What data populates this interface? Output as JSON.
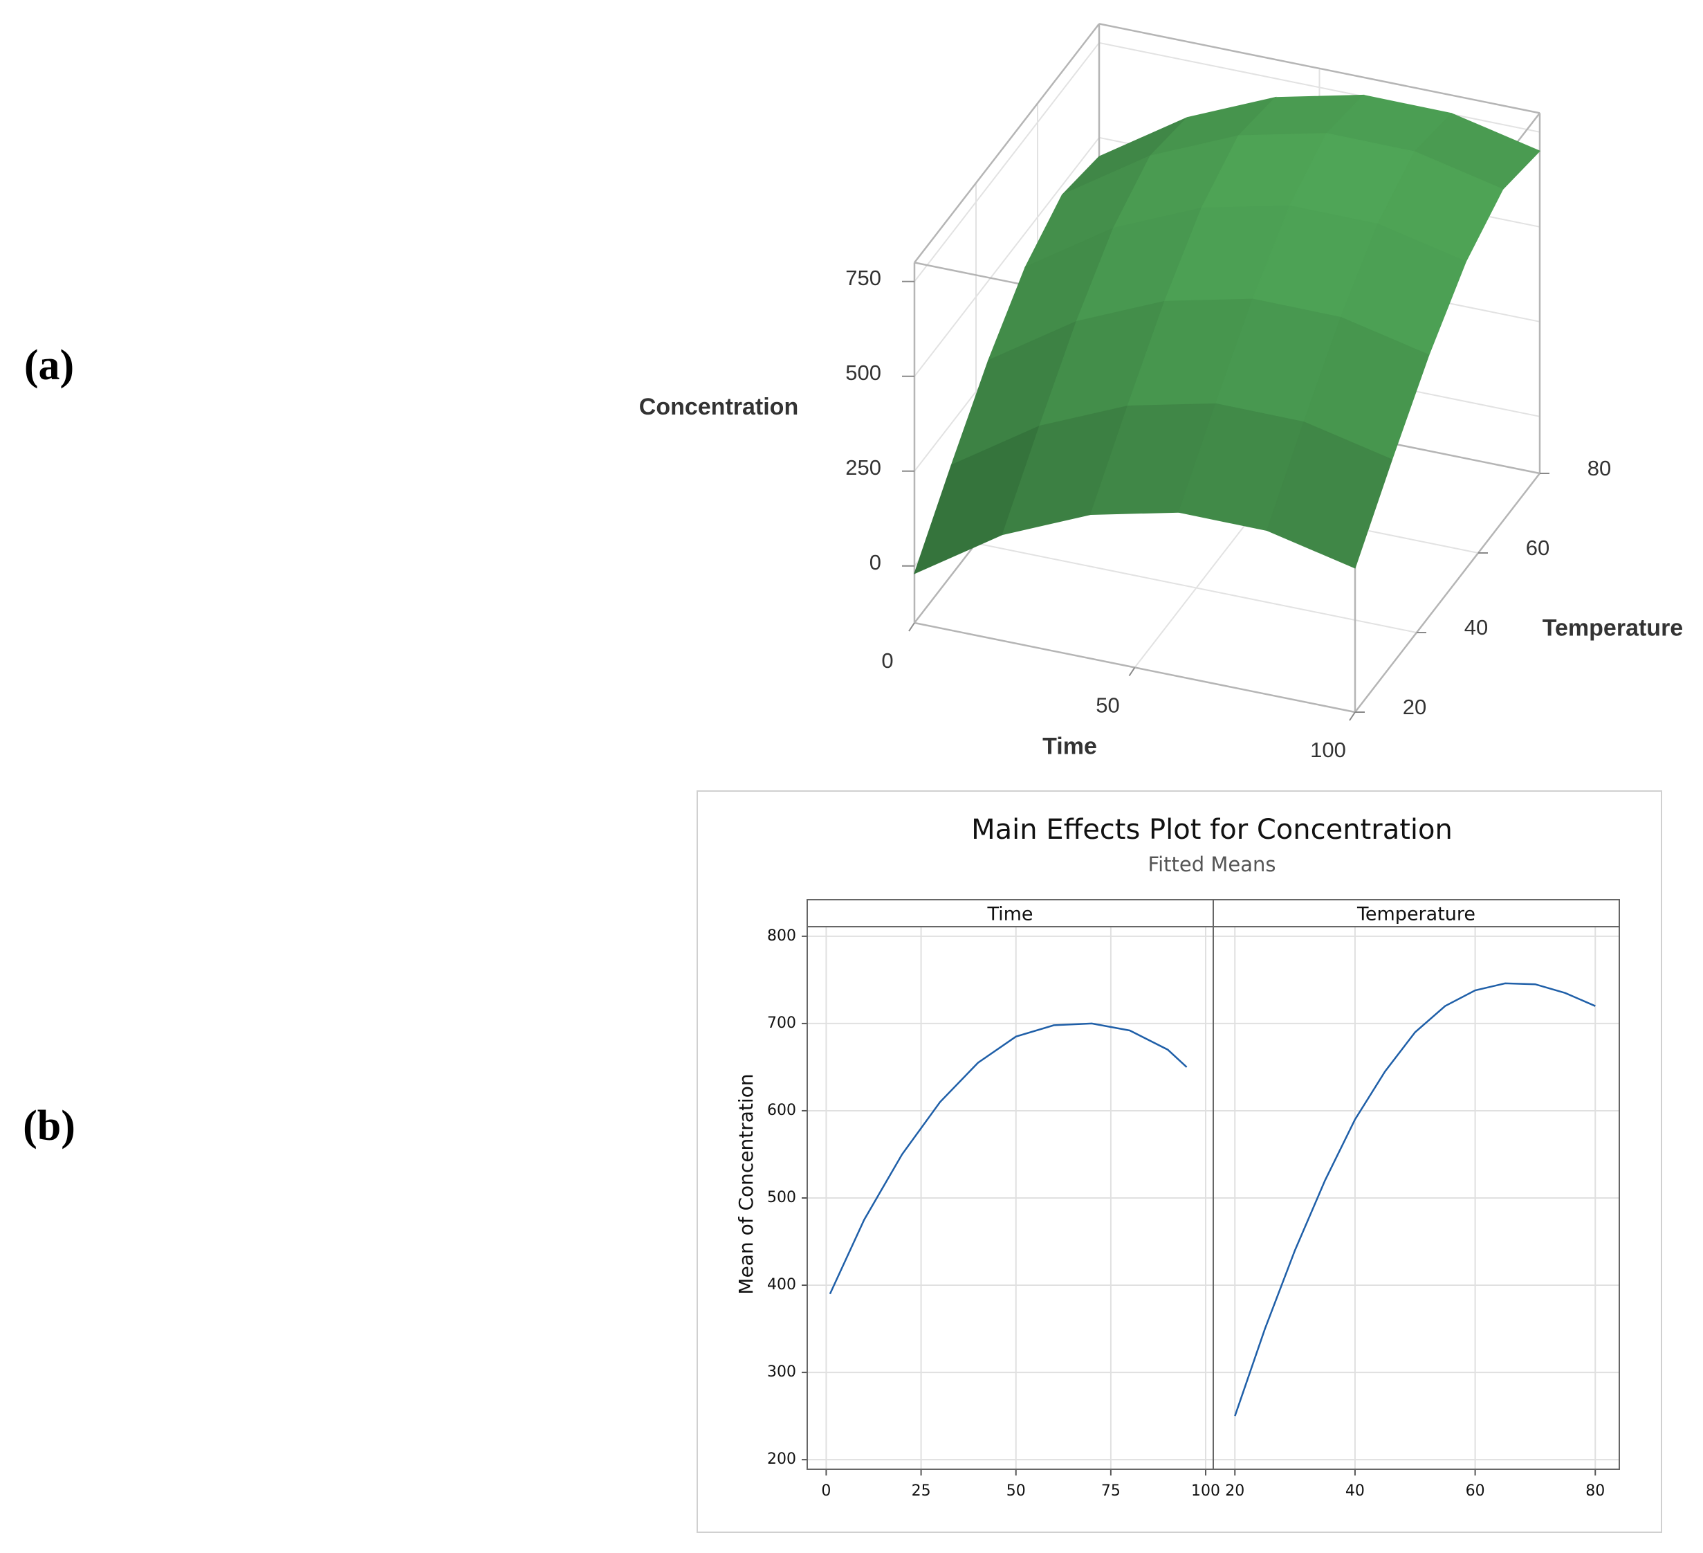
{
  "chart_data": [
    {
      "type": "surface",
      "label": "(a)",
      "xlabel": "Time",
      "ylabel": "Temperature",
      "zlabel": "Concentration",
      "xlim": [
        0,
        100
      ],
      "ylim": [
        20,
        80
      ],
      "zlim": [
        -150,
        800
      ],
      "xticks": [
        0,
        50,
        100
      ],
      "yticks": [
        20,
        40,
        60,
        80
      ],
      "zticks": [
        0,
        250,
        500,
        750
      ],
      "x": [
        0,
        20,
        40,
        60,
        80,
        100
      ],
      "y": [
        20,
        32,
        44,
        56,
        68,
        80
      ],
      "z": [
        [
          -20,
          130,
          230,
          283,
          282,
          230
        ],
        [
          140,
          290,
          390,
          443,
          442,
          390
        ],
        [
          290,
          440,
          540,
          593,
          592,
          540
        ],
        [
          410,
          560,
          660,
          713,
          712,
          660
        ],
        [
          475,
          625,
          725,
          778,
          777,
          725
        ],
        [
          450,
          600,
          700,
          753,
          752,
          700
        ]
      ],
      "color": "#2f6b35",
      "grid": true
    },
    {
      "type": "line",
      "label": "(b)",
      "title": "Main Effects Plot for Concentration",
      "subtitle": "Fitted Means",
      "ylabel": "Mean of Concentration",
      "ylim": [
        189,
        811
      ],
      "yticks": [
        200,
        300,
        400,
        500,
        600,
        700,
        800
      ],
      "color": "#1f5fa8",
      "grid": true,
      "panels": [
        {
          "name": "Time",
          "xlim": [
            -5,
            102
          ],
          "xticks": [
            0,
            25,
            50,
            75,
            100
          ],
          "x": [
            1,
            10,
            20,
            30,
            40,
            50,
            60,
            70,
            80,
            90,
            95
          ],
          "values": [
            390,
            475,
            550,
            610,
            655,
            685,
            698,
            700,
            692,
            670,
            650
          ]
        },
        {
          "name": "Temperature",
          "xlim": [
            16.4,
            84
          ],
          "xticks": [
            20,
            40,
            60,
            80
          ],
          "x": [
            20,
            25,
            30,
            35,
            40,
            45,
            50,
            55,
            60,
            65,
            70,
            75,
            80
          ],
          "values": [
            250,
            350,
            440,
            520,
            590,
            645,
            690,
            720,
            738,
            746,
            745,
            735,
            720
          ]
        }
      ]
    }
  ]
}
